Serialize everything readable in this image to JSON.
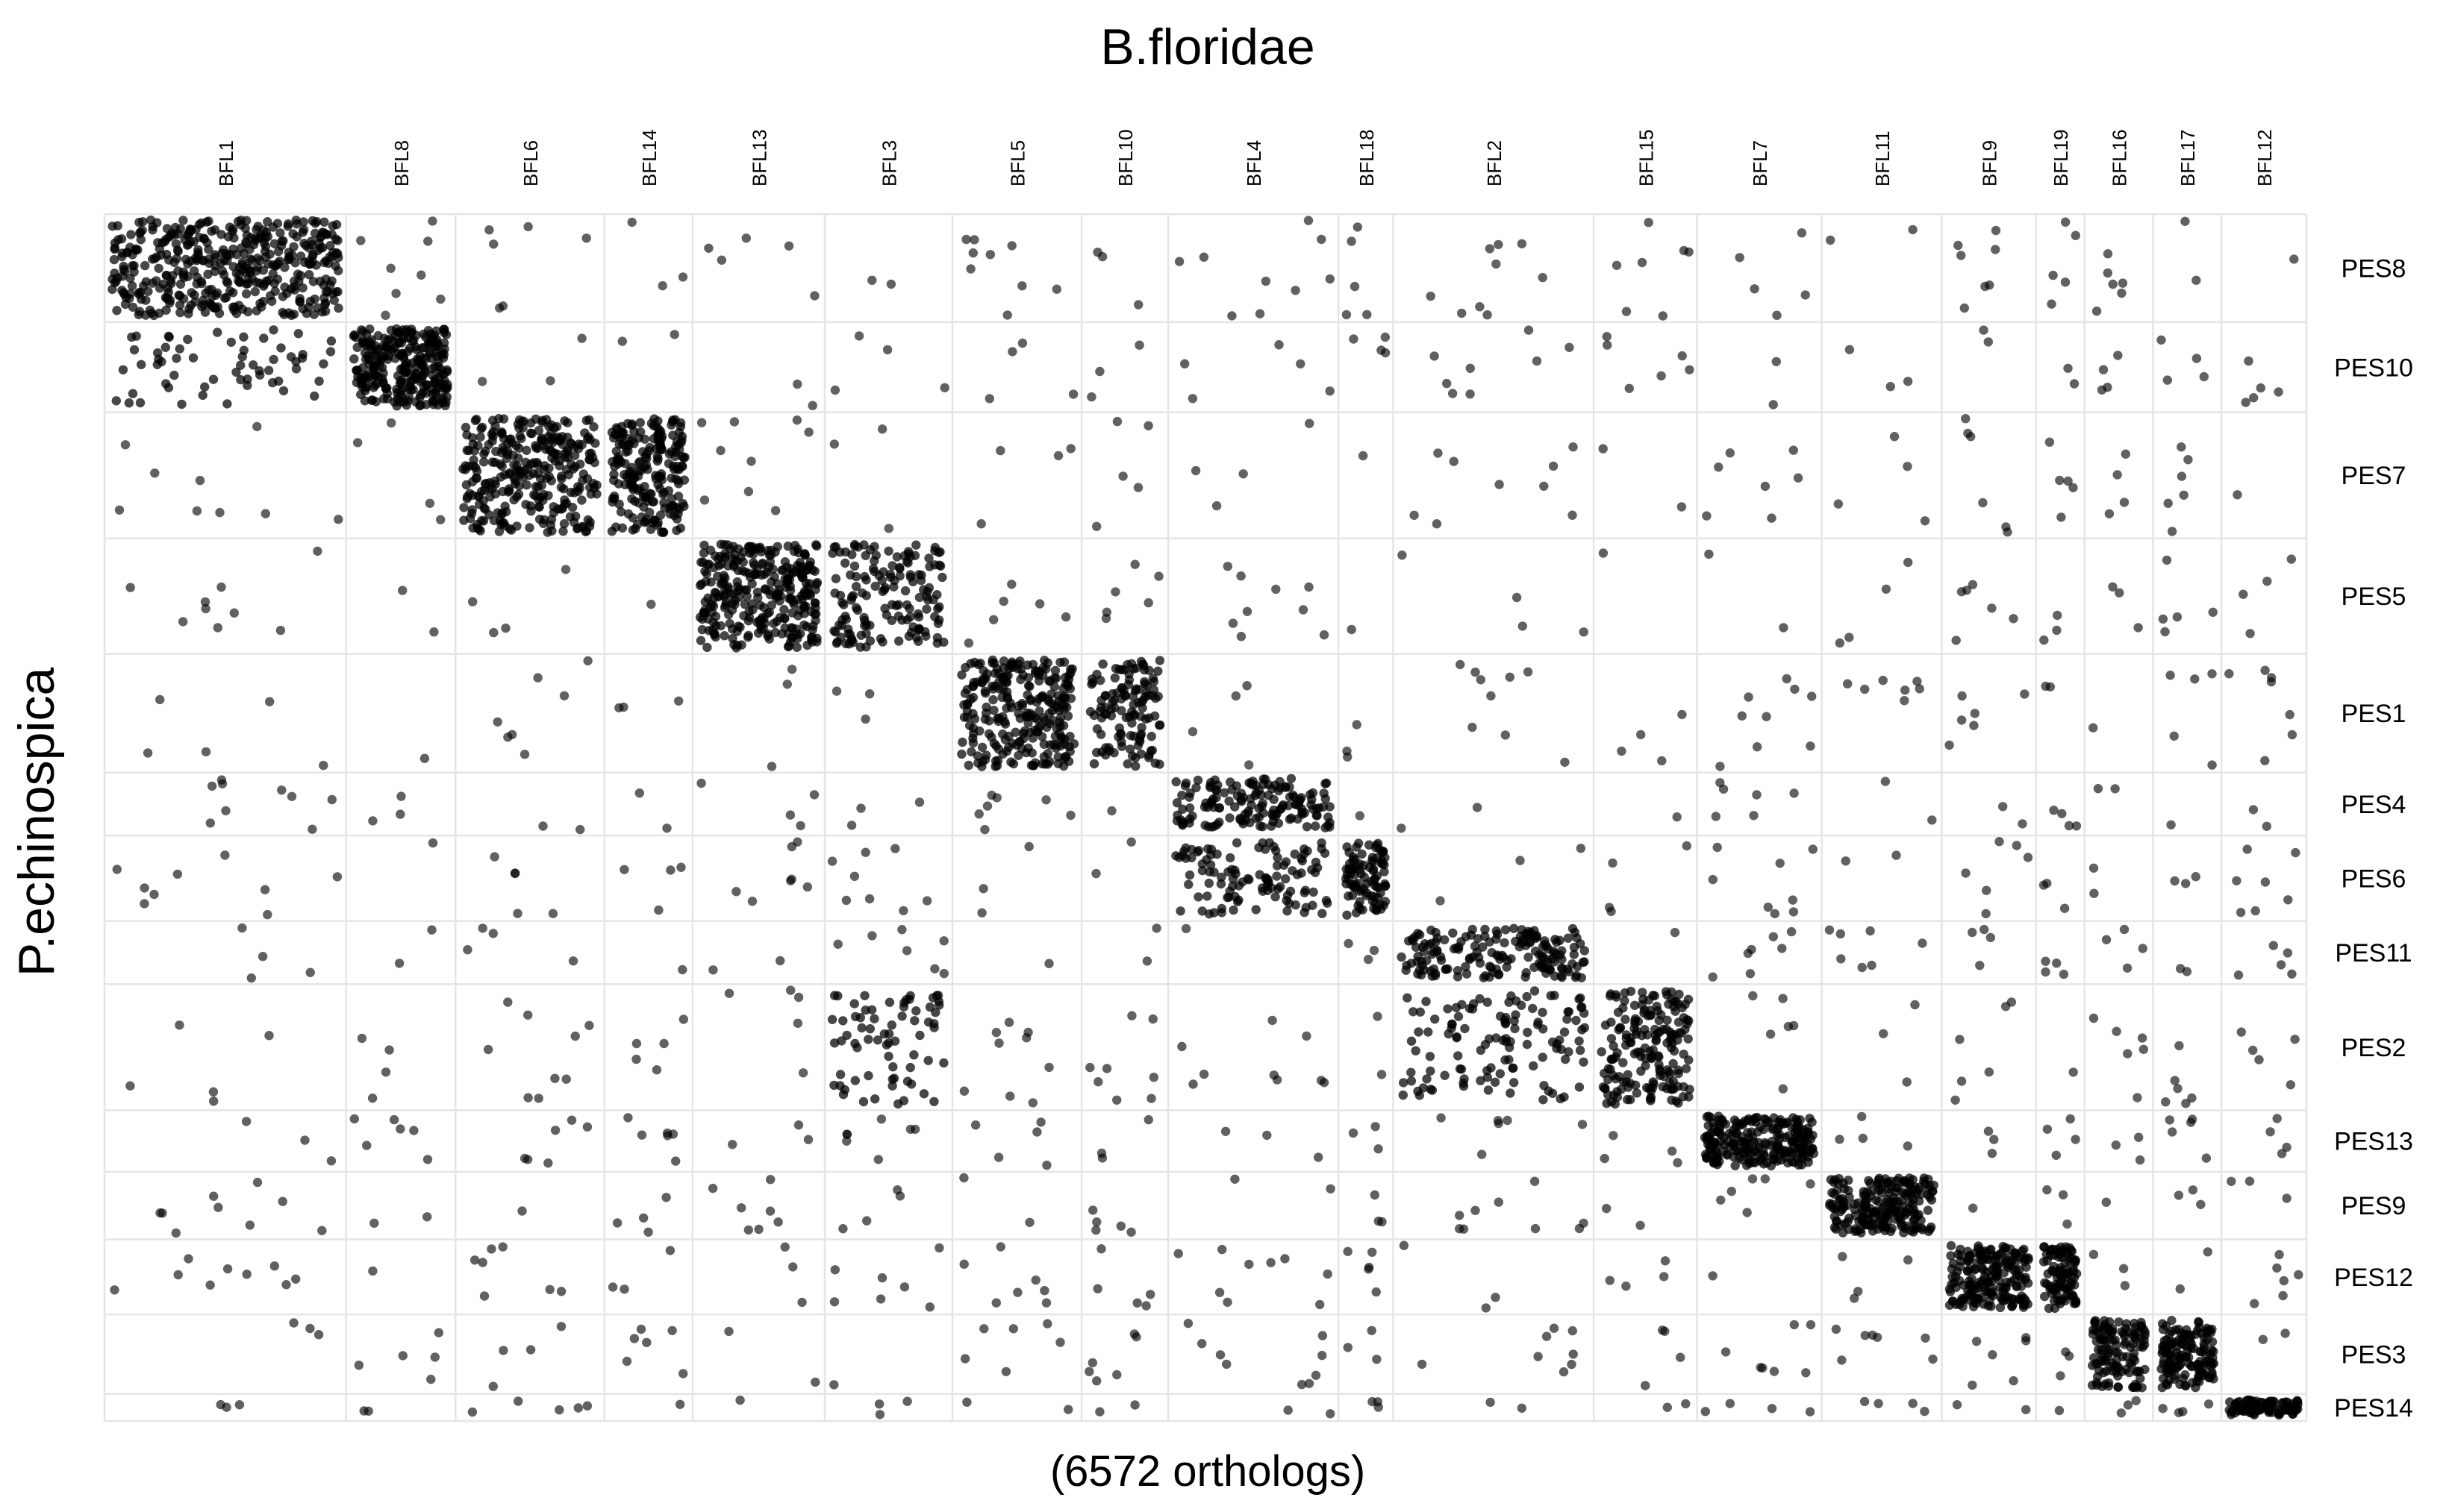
{
  "chart_data": {
    "type": "scatter",
    "title": "B.floridae",
    "xlabel": "(6572 orthologs)",
    "ylabel": "P.echinospica",
    "grid": true,
    "point_color": "#000000",
    "grid_color": "#e5e5e5",
    "columns": [
      {
        "name": "BFL1",
        "size": 159
      },
      {
        "name": "BFL8",
        "size": 72
      },
      {
        "name": "BFL6",
        "size": 98
      },
      {
        "name": "BFL14",
        "size": 58
      },
      {
        "name": "BFL13",
        "size": 87
      },
      {
        "name": "BFL3",
        "size": 84
      },
      {
        "name": "BFL5",
        "size": 85
      },
      {
        "name": "BFL10",
        "size": 57
      },
      {
        "name": "BFL4",
        "size": 112
      },
      {
        "name": "BFL18",
        "size": 36
      },
      {
        "name": "BFL2",
        "size": 132
      },
      {
        "name": "BFL15",
        "size": 68
      },
      {
        "name": "BFL7",
        "size": 82
      },
      {
        "name": "BFL11",
        "size": 79
      },
      {
        "name": "BFL9",
        "size": 62
      },
      {
        "name": "BFL19",
        "size": 32
      },
      {
        "name": "BFL16",
        "size": 45
      },
      {
        "name": "BFL17",
        "size": 45
      },
      {
        "name": "BFL12",
        "size": 56
      }
    ],
    "rows": [
      {
        "name": "PES8",
        "size": 72
      },
      {
        "name": "PES10",
        "size": 60
      },
      {
        "name": "PES7",
        "size": 84
      },
      {
        "name": "PES5",
        "size": 77
      },
      {
        "name": "PES1",
        "size": 79
      },
      {
        "name": "PES4",
        "size": 42
      },
      {
        "name": "PES6",
        "size": 57
      },
      {
        "name": "PES11",
        "size": 42
      },
      {
        "name": "PES2",
        "size": 84
      },
      {
        "name": "PES13",
        "size": 41
      },
      {
        "name": "PES9",
        "size": 45
      },
      {
        "name": "PES12",
        "size": 50
      },
      {
        "name": "PES3",
        "size": 53
      },
      {
        "name": "PES14",
        "size": 18
      }
    ],
    "blocks": [
      {
        "row": "PES8",
        "col": "BFL1",
        "count": 420
      },
      {
        "row": "PES10",
        "col": "BFL8",
        "count": 270
      },
      {
        "row": "PES7",
        "col": "BFL6",
        "count": 300
      },
      {
        "row": "PES7",
        "col": "BFL14",
        "count": 210
      },
      {
        "row": "PES5",
        "col": "BFL13",
        "count": 300
      },
      {
        "row": "PES5",
        "col": "BFL3",
        "count": 150
      },
      {
        "row": "PES1",
        "col": "BFL5",
        "count": 260
      },
      {
        "row": "PES1",
        "col": "BFL10",
        "count": 120
      },
      {
        "row": "PES4",
        "col": "BFL4",
        "count": 150
      },
      {
        "row": "PES6",
        "col": "BFL4",
        "count": 110
      },
      {
        "row": "PES6",
        "col": "BFL18",
        "count": 90
      },
      {
        "row": "PES11",
        "col": "BFL2",
        "count": 170
      },
      {
        "row": "PES2",
        "col": "BFL2",
        "count": 120
      },
      {
        "row": "PES2",
        "col": "BFL15",
        "count": 180
      },
      {
        "row": "PES2",
        "col": "BFL3",
        "count": 70
      },
      {
        "row": "PES13",
        "col": "BFL7",
        "count": 230
      },
      {
        "row": "PES9",
        "col": "BFL11",
        "count": 210
      },
      {
        "row": "PES12",
        "col": "BFL9",
        "count": 190
      },
      {
        "row": "PES12",
        "col": "BFL19",
        "count": 90
      },
      {
        "row": "PES3",
        "col": "BFL16",
        "count": 120
      },
      {
        "row": "PES3",
        "col": "BFL17",
        "count": 140
      },
      {
        "row": "PES14",
        "col": "BFL12",
        "count": 90
      },
      {
        "row": "PES10",
        "col": "BFL1",
        "count": 60
      }
    ]
  }
}
